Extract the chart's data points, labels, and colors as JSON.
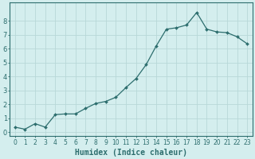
{
  "x": [
    0,
    1,
    2,
    3,
    4,
    5,
    6,
    7,
    8,
    9,
    10,
    11,
    12,
    13,
    14,
    15,
    16,
    17,
    18,
    19,
    20,
    21,
    22,
    23
  ],
  "y": [
    0.35,
    0.2,
    0.6,
    0.35,
    1.25,
    1.3,
    1.3,
    1.7,
    2.05,
    2.2,
    2.5,
    3.2,
    3.85,
    4.85,
    6.2,
    7.4,
    7.5,
    7.7,
    8.6,
    7.4,
    7.2,
    7.15,
    6.85,
    6.35
  ],
  "line_color": "#2d6e6e",
  "marker": "D",
  "marker_size": 2.0,
  "bg_color": "#d4eeee",
  "grid_color": "#b8d8d8",
  "xlabel": "Humidex (Indice chaleur)",
  "xlim": [
    -0.5,
    23.5
  ],
  "ylim": [
    -0.3,
    9.3
  ],
  "xtick_fontsize": 5.5,
  "ytick_fontsize": 6.0,
  "xlabel_fontsize": 7.0,
  "spine_color": "#2d6e6e",
  "yticks": [
    0,
    1,
    2,
    3,
    4,
    5,
    6,
    7,
    8
  ]
}
